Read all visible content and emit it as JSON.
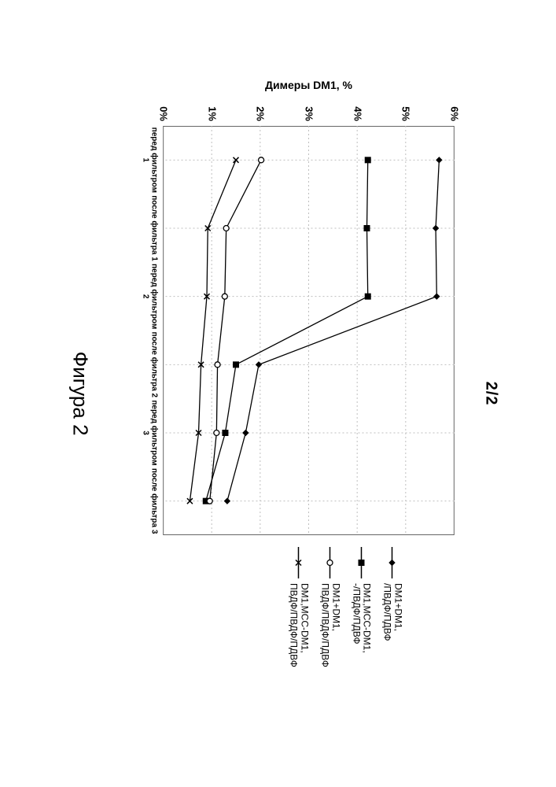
{
  "page_number_label": "2/2",
  "caption": "Фигура 2",
  "y_axis_title": "Димеры DM1, %",
  "chart": {
    "type": "line",
    "background_color": "#ffffff",
    "plot_border_color": "#000000",
    "grid_color": "#bfbfbf",
    "grid_dash": "2 3",
    "xlabels": [
      "перед фильтром 1",
      "после фильтра 1",
      "перед фильтром 2",
      "после фильтра 2",
      "перед фильтром 3",
      "после фильтра 3"
    ],
    "ylim": [
      0,
      6
    ],
    "yticks": [
      0,
      1,
      2,
      3,
      4,
      5,
      6
    ],
    "ytick_labels": [
      "0%",
      "1%",
      "2%",
      "3%",
      "4%",
      "5%",
      "6%"
    ],
    "axis_fontsize": 13,
    "x_font_size": 10,
    "series": [
      {
        "id": "s1",
        "label": "DM1+DM1,\n/ПВДФ/ПДВФ",
        "marker": "diamond",
        "color": "#000000",
        "values": [
          5.69,
          5.62,
          5.64,
          1.97,
          1.7,
          1.32
        ]
      },
      {
        "id": "s2",
        "label": "DM1,MCC-DM1,\n-/ПВДФ/ПДВФ",
        "marker": "square",
        "color": "#000000",
        "values": [
          4.22,
          4.2,
          4.22,
          1.5,
          1.28,
          0.88
        ]
      },
      {
        "id": "s3",
        "label": "DM1+DM1,\nПВДФ/ПВДФ/ПДВФ",
        "marker": "circle",
        "color": "#000000",
        "values": [
          2.02,
          1.3,
          1.27,
          1.12,
          1.1,
          0.96
        ]
      },
      {
        "id": "s4",
        "label": "DM1,MCC-DM1,\nПВДФ/ПВДФ/ПДВФ",
        "marker": "x",
        "color": "#000000",
        "values": [
          1.5,
          0.92,
          0.9,
          0.78,
          0.73,
          0.55
        ]
      }
    ],
    "marker_size": 7,
    "line_width": 1.3
  },
  "legend": {
    "fontsize": 12,
    "swatch_line_width": 1.5
  }
}
